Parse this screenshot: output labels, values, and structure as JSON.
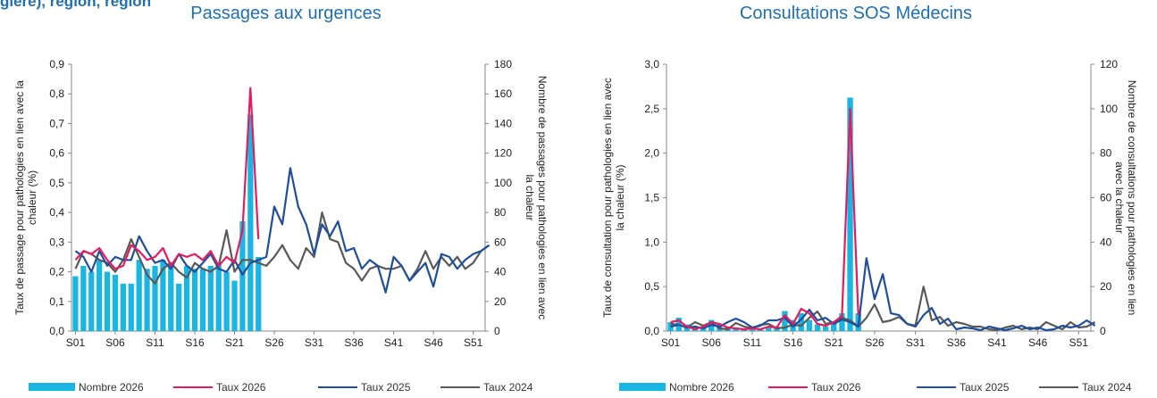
{
  "header_fragment": "gière), région, région",
  "colors": {
    "bars": "#19b6e3",
    "taux_2026": "#e31c5f",
    "taux_2025": "#1f4e9c",
    "taux_2024": "#595959",
    "title": "#1f6fb2"
  },
  "legend": [
    {
      "label": "Nombre 2026",
      "kind": "bar",
      "color": "#19b6e3"
    },
    {
      "label": "Taux 2026",
      "kind": "line",
      "color": "#e31c5f"
    },
    {
      "label": "Taux 2025",
      "kind": "line",
      "color": "#1f4e9c"
    },
    {
      "label": "Taux 2024",
      "kind": "line",
      "color": "#595959"
    }
  ],
  "chart_data": [
    {
      "type": "bar",
      "title": "Passages aux urgences",
      "ylabel": "Taux de passage pour pathologies en lien avec la chaleur (%)",
      "ylabel_lines": [
        "Taux de passage pour pathologies en lien avec la",
        "chaleur (%)"
      ],
      "y2label": "Nombre de passages pour pathologies en lien avec la chaleur",
      "y2label_lines": [
        "Nombre de passages pour pathologies en lien avec",
        "la chaleur"
      ],
      "ylim": [
        0,
        0.9
      ],
      "y2lim": [
        0,
        180
      ],
      "y_ticks": [
        "0,0",
        "0,1",
        "0,2",
        "0,3",
        "0,4",
        "0,5",
        "0,6",
        "0,7",
        "0,8",
        "0,9"
      ],
      "y2_ticks": [
        "0",
        "20",
        "40",
        "60",
        "80",
        "100",
        "120",
        "140",
        "160",
        "180"
      ],
      "x_ticks": [
        "S01",
        "S06",
        "S11",
        "S16",
        "S21",
        "S26",
        "S31",
        "S36",
        "S41",
        "S46",
        "S51"
      ],
      "weeks": 52,
      "bars_2026": [
        37,
        44,
        40,
        48,
        40,
        38,
        32,
        32,
        48,
        42,
        44,
        48,
        46,
        32,
        44,
        42,
        42,
        44,
        46,
        40,
        34,
        74,
        146,
        50
      ],
      "taux_2026": [
        0.24,
        0.27,
        0.26,
        0.28,
        0.24,
        0.21,
        0.22,
        0.29,
        0.27,
        0.24,
        0.25,
        0.28,
        0.22,
        0.26,
        0.25,
        0.26,
        0.24,
        0.27,
        0.22,
        0.25,
        0.23,
        0.34,
        0.82,
        0.31
      ],
      "taux_2025": [
        0.27,
        0.25,
        0.2,
        0.27,
        0.22,
        0.25,
        0.24,
        0.24,
        0.32,
        0.27,
        0.23,
        0.24,
        0.21,
        0.26,
        0.22,
        0.2,
        0.23,
        0.26,
        0.21,
        0.2,
        0.24,
        0.19,
        0.23,
        0.24,
        0.25,
        0.42,
        0.36,
        0.55,
        0.42,
        0.36,
        0.26,
        0.36,
        0.32,
        0.37,
        0.27,
        0.28,
        0.21,
        0.24,
        0.22,
        0.13,
        0.25,
        0.22,
        0.17,
        0.2,
        0.23,
        0.15,
        0.26,
        0.25,
        0.21,
        0.24,
        0.26,
        0.27,
        0.29
      ],
      "taux_2024": [
        0.21,
        0.27,
        0.26,
        0.24,
        0.23,
        0.2,
        0.24,
        0.31,
        0.25,
        0.19,
        0.16,
        0.21,
        0.23,
        0.2,
        0.18,
        0.23,
        0.21,
        0.2,
        0.22,
        0.34,
        0.2,
        0.24,
        0.24,
        0.23,
        0.22,
        0.25,
        0.29,
        0.24,
        0.21,
        0.28,
        0.25,
        0.4,
        0.31,
        0.3,
        0.23,
        0.21,
        0.17,
        0.21,
        0.22,
        0.21,
        0.21,
        0.22,
        0.17,
        0.21,
        0.27,
        0.21,
        0.25,
        0.22,
        0.25,
        0.21,
        0.23,
        0.27,
        0.29
      ]
    },
    {
      "type": "bar",
      "title": "Consultations SOS Médecins",
      "ylabel": "Taux de consultation pour pathologies en lien avec la chaleur (%)",
      "ylabel_lines": [
        "Taux de consultation pour pathologies en lien avec",
        "la chaleur (%)"
      ],
      "y2label": "Nombre de consultations pour pathologies en lien avec la chaleur",
      "y2label_lines": [
        "Nombre de consultations pour pathologies en lien",
        "avec la chaleur"
      ],
      "ylim": [
        0,
        3
      ],
      "y2lim": [
        0,
        120
      ],
      "y_ticks": [
        "0,0",
        "0,5",
        "1,0",
        "1,5",
        "2,0",
        "2,5",
        "3,0"
      ],
      "y2_ticks": [
        "0",
        "20",
        "40",
        "60",
        "80",
        "100",
        "120"
      ],
      "x_ticks": [
        "S01",
        "S06",
        "S11",
        "S16",
        "S21",
        "S26",
        "S31",
        "S36",
        "S41",
        "S46",
        "S51"
      ],
      "weeks": 52,
      "bars_2026": [
        4,
        6,
        3,
        2,
        2,
        5,
        3,
        2,
        1,
        1,
        2,
        1,
        2,
        2,
        9,
        5,
        8,
        5,
        3,
        2,
        4,
        8,
        105,
        8
      ],
      "taux_2026": [
        0.1,
        0.12,
        0.05,
        0.02,
        0.05,
        0.1,
        0.08,
        0.04,
        0.03,
        0.02,
        0.03,
        0.02,
        0.05,
        0.04,
        0.18,
        0.08,
        0.25,
        0.2,
        0.08,
        0.06,
        0.1,
        0.17,
        2.5,
        0.18
      ],
      "taux_2025": [
        0.05,
        0.07,
        0.04,
        0.05,
        0.03,
        0.07,
        0.05,
        0.1,
        0.14,
        0.1,
        0.04,
        0.06,
        0.12,
        0.12,
        0.15,
        0.05,
        0.13,
        0.24,
        0.12,
        0.15,
        0.08,
        0.13,
        0.1,
        0.05,
        0.82,
        0.36,
        0.64,
        0.2,
        0.18,
        0.08,
        0.05,
        0.18,
        0.26,
        0.08,
        0.14,
        0.02,
        0.04,
        0.03,
        0.01,
        0.05,
        0.03,
        0.01,
        0.03,
        0.06,
        0.02,
        0.04,
        0.01,
        0.02,
        0.06,
        0.04,
        0.06,
        0.12,
        0.06
      ],
      "taux_2024": [
        0.08,
        0.07,
        0.04,
        0.1,
        0.06,
        0.1,
        0.03,
        0.02,
        0.09,
        0.05,
        0.03,
        0.07,
        0.08,
        0.03,
        0.04,
        0.07,
        0.06,
        0.15,
        0.22,
        0.08,
        0.1,
        0.15,
        0.12,
        0.05,
        0.15,
        0.3,
        0.1,
        0.12,
        0.16,
        0.08,
        0.06,
        0.5,
        0.12,
        0.16,
        0.06,
        0.1,
        0.08,
        0.05,
        0.05,
        0.02,
        0.01,
        0.04,
        0.06,
        0.02,
        0.04,
        0.02,
        0.1,
        0.06,
        0.02,
        0.1,
        0.04,
        0.05,
        0.1
      ]
    }
  ]
}
